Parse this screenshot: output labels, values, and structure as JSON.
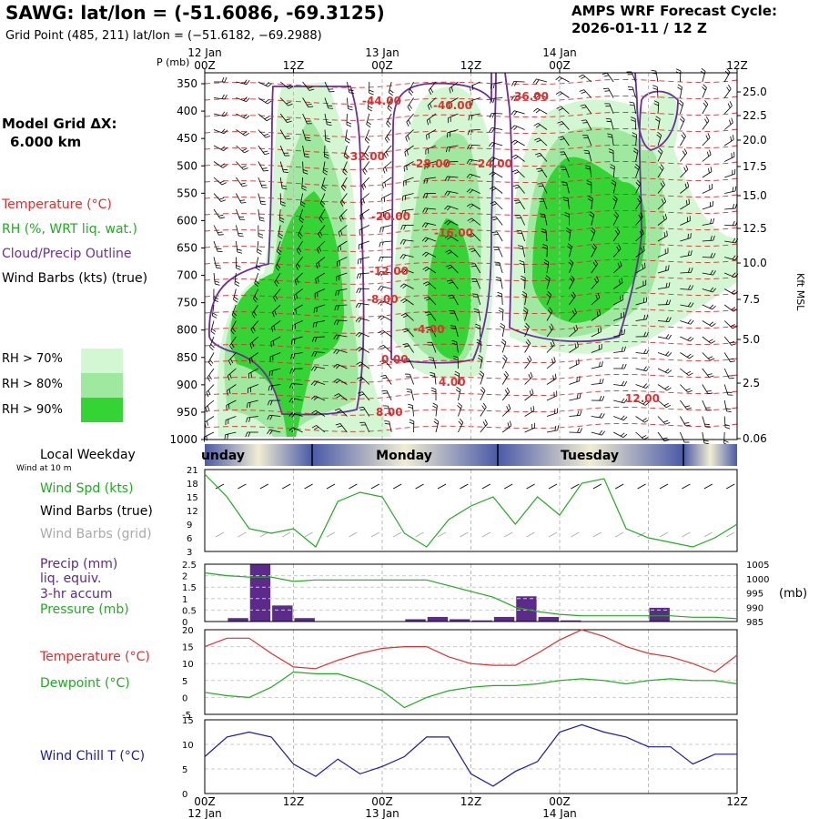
{
  "header": {
    "station_title": "SAWG:  lat/lon = (-51.6086, -69.3125)",
    "grid_point": "Grid Point (485, 211) lat/lon = (−51.6182, −69.2988)",
    "cycle_label": "AMPS WRF Forecast Cycle:",
    "cycle_value": "2026-01-11 / 12  Z"
  },
  "sidebar": {
    "model_grid_line1": "Model Grid ΔX:",
    "model_grid_line2": "6.000 km",
    "legend": [
      {
        "label": "Temperature (°C)",
        "color": "#e03030"
      },
      {
        "label": "RH (%, WRT liq. wat.)",
        "color": "#22aa22"
      },
      {
        "label": "Cloud/Precip Outline",
        "color": "#6a2f9a"
      },
      {
        "label": "Wind Barbs (kts) (true)",
        "color": "#000000"
      }
    ],
    "rh_legend": [
      {
        "label": "RH > 70%",
        "color": "#d2f7d2"
      },
      {
        "label": "RH > 80%",
        "color": "#9fe89f"
      },
      {
        "label": "RH > 90%",
        "color": "#35d435"
      }
    ]
  },
  "time_axis": {
    "top_times": [
      "00Z",
      "12Z",
      "00Z",
      "12Z",
      "00Z",
      "12Z"
    ],
    "top_dates": [
      "12 Jan",
      "13 Jan",
      "14 Jan"
    ],
    "bottom_times": [
      "00Z",
      "12Z",
      "00Z",
      "12Z",
      "00Z",
      "12Z"
    ],
    "bottom_dates": [
      "12 Jan",
      "13 Jan",
      "14 Jan"
    ]
  },
  "chart_data": [
    {
      "type": "heatmap",
      "title": "Pressure-time cross section",
      "ylabel": "P (mb)",
      "y2label": "Kft MSL",
      "pressure_ticks": [
        "350",
        "400",
        "450",
        "500",
        "550",
        "600",
        "650",
        "700",
        "750",
        "800",
        "850",
        "900",
        "950",
        "1000"
      ],
      "height_ticks": [
        "25.0",
        "22.5",
        "20.0",
        "17.5",
        "15.0",
        "12.5",
        "10.0",
        "7.5",
        "5.0",
        "2.5",
        "0.06"
      ],
      "temperature_labels": [
        "-44.00",
        "-40.00",
        "-36.00",
        "-32.00",
        "-28.00",
        "-24.00",
        "-20.00",
        "-16.00",
        "-12.00",
        "-8.00",
        "-4.00",
        "0.00",
        "4.00",
        "8.00",
        "12.00"
      ]
    },
    {
      "type": "bar",
      "title": "Local Weekday",
      "days": [
        "unday",
        "Monday",
        "Tuesday"
      ],
      "subtitle": "Wind at 10 m"
    },
    {
      "type": "line",
      "title": "Wind Speed",
      "labels": [
        "Wind Spd (kts)",
        "Wind Barbs (true)",
        "Wind Barbs (grid)"
      ],
      "label_colors": [
        "#22aa22",
        "#000000",
        "#aaaaaa"
      ],
      "yticks": [
        "21",
        "18",
        "15",
        "12",
        "9",
        "6",
        "3"
      ],
      "ylim": [
        3,
        21
      ],
      "x": [
        0,
        3,
        6,
        9,
        12,
        15,
        18,
        21,
        24,
        27,
        30,
        33,
        36,
        39,
        42,
        45,
        48,
        51,
        54,
        57,
        60,
        63,
        66,
        69,
        72
      ],
      "wind_speed": [
        20,
        15,
        8,
        7,
        8,
        4,
        14,
        16,
        15,
        7,
        4,
        10,
        13,
        15,
        9,
        15,
        11,
        18,
        19,
        8,
        6,
        5,
        4,
        6,
        9
      ]
    },
    {
      "type": "bar",
      "title": "Precip / Pressure",
      "labels": [
        "Precip (mm)",
        "liq. equiv.",
        "3-hr accum",
        "Pressure (mb)"
      ],
      "label_colors": [
        "#5b2a8a",
        "#5b2a8a",
        "#5b2a8a",
        "#22aa22"
      ],
      "precip_yticks": [
        "2.5",
        "2",
        "1.5",
        "1",
        "0.5",
        "0"
      ],
      "pressure_yticks": [
        "1005",
        "1000",
        "995",
        "990",
        "985"
      ],
      "pressure_unit": "(mb)",
      "precip_x": [
        3,
        6,
        9,
        12,
        15,
        18,
        21,
        24,
        27,
        30,
        33,
        36,
        39,
        42,
        45,
        48,
        51,
        54,
        57,
        60,
        63,
        66,
        69,
        72
      ],
      "precip": [
        0,
        0.15,
        2.5,
        0.7,
        0.15,
        0,
        0,
        0,
        0,
        0.1,
        0.2,
        0.1,
        0.05,
        0.2,
        1.1,
        0.2,
        0.05,
        0,
        0,
        0,
        0.6,
        0,
        0,
        0
      ],
      "pressure_x": [
        0,
        3,
        6,
        9,
        12,
        15,
        18,
        21,
        24,
        27,
        30,
        33,
        36,
        39,
        42,
        45,
        48,
        51,
        54,
        57,
        60,
        63,
        66,
        69,
        72
      ],
      "pressure": [
        1002,
        1001,
        1000.5,
        1000.5,
        999,
        999.5,
        999.5,
        999.5,
        999.5,
        999.5,
        999.5,
        997.5,
        995.5,
        993.5,
        990,
        988.5,
        987.5,
        987,
        987,
        987,
        987,
        987,
        986.5,
        986.5,
        986
      ]
    },
    {
      "type": "line",
      "title": "Temperature / Dewpoint",
      "labels": [
        "Temperature (°C)",
        "Dewpoint (°C)"
      ],
      "label_colors": [
        "#e03030",
        "#22aa22"
      ],
      "yticks": [
        "20",
        "15",
        "10",
        "5",
        "0",
        "-5"
      ],
      "ylim": [
        -5,
        20
      ],
      "x": [
        0,
        3,
        6,
        9,
        12,
        15,
        18,
        21,
        24,
        27,
        30,
        33,
        36,
        39,
        42,
        45,
        48,
        51,
        54,
        57,
        60,
        63,
        66,
        69,
        72
      ],
      "temperature": [
        15,
        17.5,
        17.5,
        13,
        9,
        8.5,
        11,
        13,
        14.5,
        15,
        15,
        12,
        10,
        9.5,
        9.5,
        13,
        17,
        20,
        18,
        15,
        13,
        12,
        10,
        7.5,
        12.5
      ],
      "dewpoint": [
        1.5,
        0.5,
        0,
        3,
        7.5,
        7,
        7,
        5,
        2,
        -3,
        0,
        2,
        3,
        3.5,
        3.5,
        4,
        5,
        5.5,
        5,
        4,
        5,
        5.5,
        5,
        5,
        4
      ]
    },
    {
      "type": "line",
      "title": "Wind Chill",
      "labels": [
        "Wind Chill T (°C)"
      ],
      "label_colors": [
        "#1a1aa8"
      ],
      "yticks": [
        "15",
        "10",
        "5",
        "0"
      ],
      "ylim": [
        0,
        15
      ],
      "x": [
        0,
        3,
        6,
        9,
        12,
        15,
        18,
        21,
        24,
        27,
        30,
        33,
        36,
        39,
        42,
        45,
        48,
        51,
        54,
        57,
        60,
        63,
        66,
        69,
        72
      ],
      "wind_chill": [
        7.5,
        11.5,
        12.5,
        11.5,
        6,
        3.5,
        7,
        4,
        5.5,
        7.5,
        11.5,
        11.5,
        4,
        1.5,
        4.5,
        6.5,
        12.5,
        14,
        12.5,
        11.5,
        9.5,
        9.5,
        6,
        8,
        8
      ]
    }
  ]
}
